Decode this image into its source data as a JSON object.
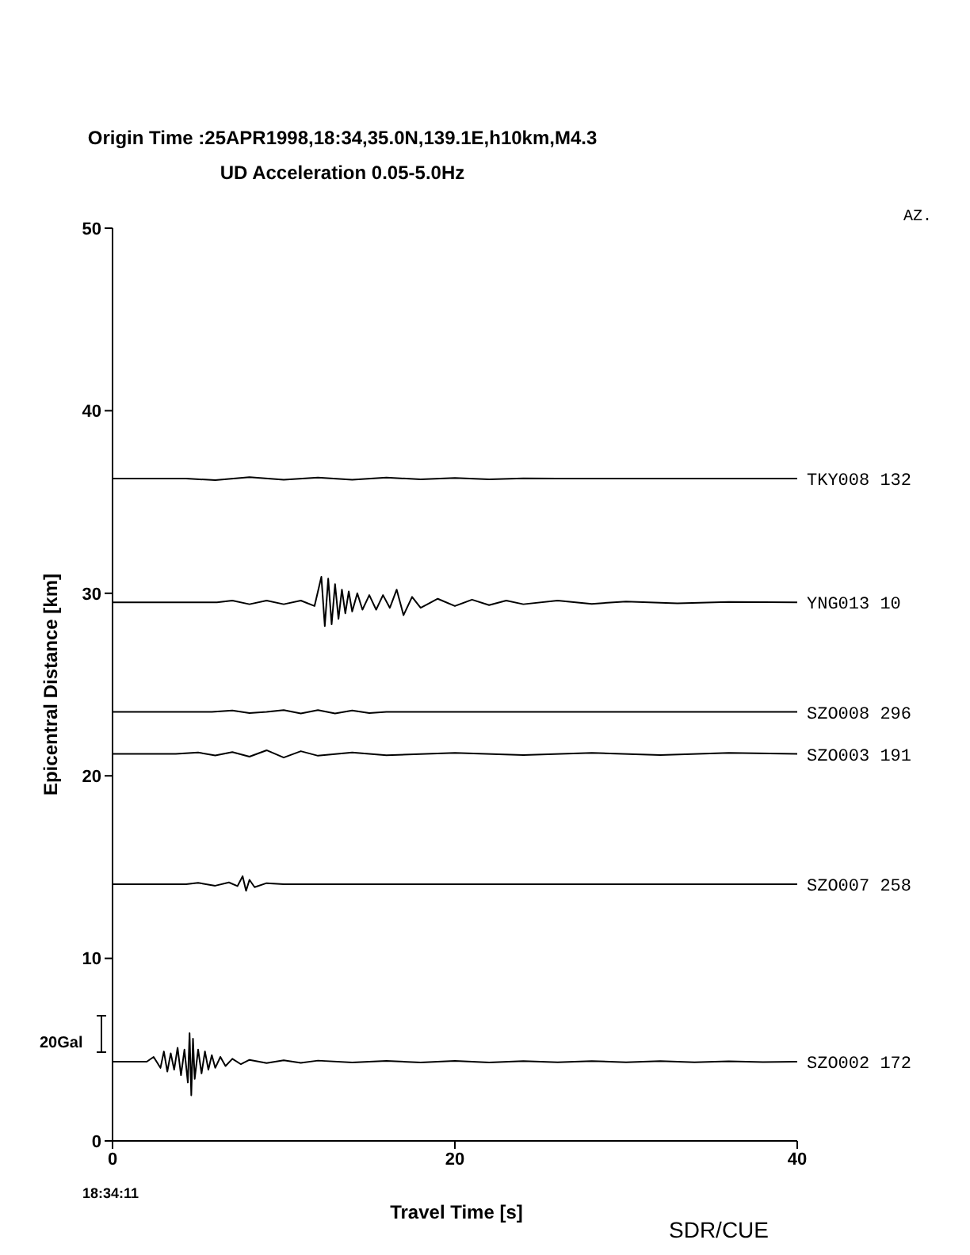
{
  "chart_data": {
    "type": "line",
    "title": "Origin Time :25APR1998,18:34,35.0N,139.1E,h10km,M4.3",
    "subtitle": "UD Acceleration 0.05-5.0Hz",
    "xlabel": "Travel Time [s]",
    "ylabel": "Epicentral Distance [km]",
    "annotations": [
      "AZ.",
      "18:34:11",
      "20Gal",
      "SDR/CUE"
    ],
    "xlim": [
      0,
      40
    ],
    "xticks": [
      0,
      20,
      40
    ],
    "ylim": [
      0,
      50
    ],
    "yticks": [
      0,
      10,
      20,
      30,
      40,
      50
    ],
    "series": [
      {
        "name": "TKY008 132",
        "color": "#000000",
        "x": [
          0,
          4.3,
          6,
          8,
          10,
          12,
          14,
          16,
          18,
          20,
          22,
          24,
          26,
          40
        ],
        "values": [
          36.28,
          36.28,
          36.2,
          36.36,
          36.22,
          36.34,
          36.22,
          36.34,
          36.24,
          36.32,
          36.24,
          36.3,
          36.28,
          36.28
        ]
      },
      {
        "name": "YNG013 10",
        "color": "#000000",
        "x": [
          0,
          6.1,
          7,
          8,
          9,
          10,
          11,
          11.8,
          12.2,
          12.4,
          12.6,
          12.8,
          13.0,
          13.2,
          13.4,
          13.6,
          13.8,
          14.0,
          14.3,
          14.6,
          15.0,
          15.4,
          15.8,
          16.2,
          16.6,
          17.0,
          17.5,
          18,
          19,
          20,
          21,
          22,
          23,
          24,
          26,
          28,
          30,
          33,
          36,
          40
        ],
        "values": [
          29.5,
          29.5,
          29.6,
          29.4,
          29.6,
          29.4,
          29.6,
          29.3,
          30.9,
          28.2,
          30.8,
          28.3,
          30.5,
          28.6,
          30.2,
          28.9,
          30.1,
          29.0,
          30.0,
          29.1,
          29.9,
          29.1,
          29.9,
          29.2,
          30.2,
          28.8,
          29.8,
          29.2,
          29.7,
          29.3,
          29.65,
          29.35,
          29.6,
          29.4,
          29.6,
          29.42,
          29.55,
          29.45,
          29.53,
          29.5
        ]
      },
      {
        "name": "SZO008 296",
        "color": "#000000",
        "x": [
          0,
          5.8,
          7,
          8,
          9,
          10,
          11,
          12,
          13,
          14,
          15,
          16,
          40
        ],
        "values": [
          23.5,
          23.5,
          23.58,
          23.44,
          23.5,
          23.6,
          23.42,
          23.6,
          23.42,
          23.58,
          23.44,
          23.5,
          23.5
        ]
      },
      {
        "name": "SZO003 191",
        "color": "#000000",
        "x": [
          0,
          3.7,
          5,
          6,
          7,
          8,
          9,
          10,
          11,
          12,
          14,
          16,
          20,
          24,
          28,
          32,
          36,
          40
        ],
        "values": [
          21.2,
          21.2,
          21.28,
          21.12,
          21.3,
          21.05,
          21.4,
          21.0,
          21.35,
          21.1,
          21.28,
          21.13,
          21.26,
          21.14,
          21.26,
          21.14,
          21.26,
          21.2
        ]
      },
      {
        "name": "SZO007 258",
        "color": "#000000",
        "x": [
          0,
          4.3,
          5,
          6,
          6.8,
          7.3,
          7.6,
          7.8,
          8.0,
          8.3,
          9,
          10,
          40
        ],
        "values": [
          14.06,
          14.06,
          14.14,
          13.98,
          14.16,
          13.96,
          14.5,
          13.7,
          14.3,
          13.9,
          14.12,
          14.06,
          14.06
        ]
      },
      {
        "name": "SZO002 172",
        "color": "#000000",
        "x": [
          0,
          2.0,
          2.4,
          2.8,
          3.0,
          3.2,
          3.4,
          3.6,
          3.8,
          4.0,
          4.2,
          4.4,
          4.5,
          4.6,
          4.7,
          4.8,
          5.0,
          5.2,
          5.4,
          5.6,
          5.8,
          6.0,
          6.3,
          6.6,
          7.0,
          7.5,
          8,
          9,
          10,
          11,
          12,
          14,
          16,
          18,
          20,
          22,
          24,
          26,
          28,
          30,
          32,
          34,
          36,
          38,
          40
        ],
        "values": [
          4.34,
          4.34,
          4.6,
          4.0,
          4.9,
          3.8,
          4.8,
          3.9,
          5.1,
          3.6,
          5.0,
          3.2,
          5.9,
          2.5,
          5.6,
          3.4,
          5.0,
          3.7,
          4.9,
          3.9,
          4.7,
          4.0,
          4.6,
          4.1,
          4.5,
          4.2,
          4.44,
          4.26,
          4.42,
          4.28,
          4.4,
          4.3,
          4.38,
          4.3,
          4.38,
          4.3,
          4.37,
          4.31,
          4.37,
          4.31,
          4.37,
          4.31,
          4.36,
          4.32,
          4.34
        ]
      }
    ]
  }
}
